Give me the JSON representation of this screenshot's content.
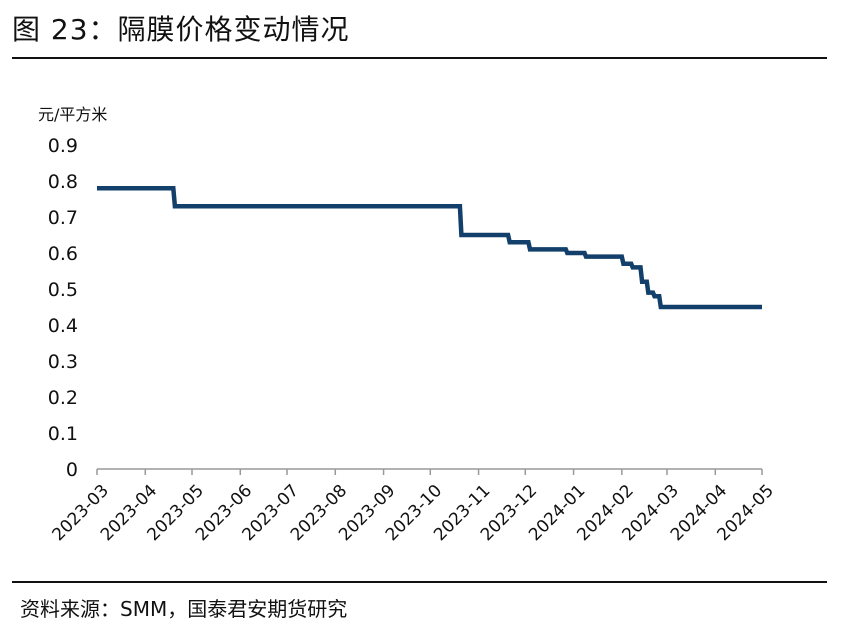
{
  "figure": {
    "title": "图 23：隔膜价格变动情况",
    "source": "资料来源：SMM，国泰君安期货研究"
  },
  "colors": {
    "line": "#12406B",
    "axis": "#999999",
    "text": "#111111"
  },
  "chart_data": {
    "type": "line",
    "title": "",
    "xlabel": "",
    "ylabel": "元/平方米",
    "ylim": [
      0,
      0.9
    ],
    "yticks": [
      "0",
      "0.1",
      "0.2",
      "0.3",
      "0.4",
      "0.5",
      "0.6",
      "0.7",
      "0.8",
      "0.9"
    ],
    "xticks": [
      "2023-03",
      "2023-04",
      "2023-05",
      "2023-06",
      "2023-07",
      "2023-08",
      "2023-09",
      "2023-10",
      "2023-11",
      "2023-12",
      "2024-01",
      "2024-02",
      "2024-03",
      "2024-04",
      "2024-05"
    ],
    "grid": false,
    "legend": "none",
    "series": [
      {
        "step": true,
        "points": [
          {
            "x": "2023-03-01",
            "y": 0.78
          },
          {
            "x": "2023-04-19",
            "y": 0.78
          },
          {
            "x": "2023-04-20",
            "y": 0.73
          },
          {
            "x": "2023-10-20",
            "y": 0.73
          },
          {
            "x": "2023-10-21",
            "y": 0.65
          },
          {
            "x": "2023-11-20",
            "y": 0.65
          },
          {
            "x": "2023-11-21",
            "y": 0.63
          },
          {
            "x": "2023-12-03",
            "y": 0.63
          },
          {
            "x": "2023-12-04",
            "y": 0.61
          },
          {
            "x": "2023-12-27",
            "y": 0.61
          },
          {
            "x": "2023-12-28",
            "y": 0.6
          },
          {
            "x": "2024-01-08",
            "y": 0.6
          },
          {
            "x": "2024-01-09",
            "y": 0.59
          },
          {
            "x": "2024-02-01",
            "y": 0.59
          },
          {
            "x": "2024-02-02",
            "y": 0.57
          },
          {
            "x": "2024-02-07",
            "y": 0.57
          },
          {
            "x": "2024-02-08",
            "y": 0.56
          },
          {
            "x": "2024-02-13",
            "y": 0.56
          },
          {
            "x": "2024-02-14",
            "y": 0.52
          },
          {
            "x": "2024-02-17",
            "y": 0.52
          },
          {
            "x": "2024-02-18",
            "y": 0.49
          },
          {
            "x": "2024-02-21",
            "y": 0.49
          },
          {
            "x": "2024-02-22",
            "y": 0.48
          },
          {
            "x": "2024-02-25",
            "y": 0.48
          },
          {
            "x": "2024-02-26",
            "y": 0.45
          },
          {
            "x": "2024-05-01",
            "y": 0.45
          }
        ]
      }
    ]
  }
}
